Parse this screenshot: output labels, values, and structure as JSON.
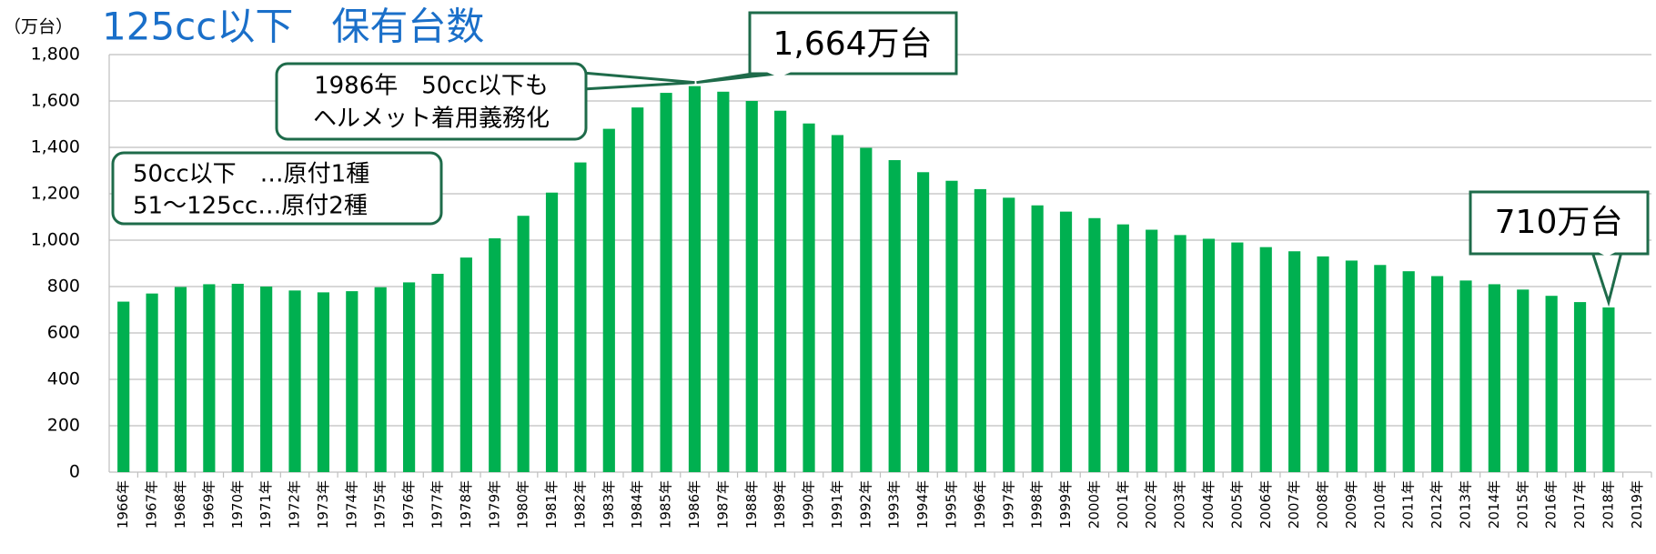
{
  "chart_data": {
    "type": "bar",
    "title": "125cc以下　保有台数",
    "y_unit_label": "（万台）",
    "categories": [
      "1966年",
      "1967年",
      "1968年",
      "1969年",
      "1970年",
      "1971年",
      "1972年",
      "1973年",
      "1974年",
      "1975年",
      "1976年",
      "1977年",
      "1978年",
      "1979年",
      "1980年",
      "1981年",
      "1982年",
      "1983年",
      "1984年",
      "1985年",
      "1986年",
      "1987年",
      "1988年",
      "1989年",
      "1990年",
      "1991年",
      "1992年",
      "1993年",
      "1994年",
      "1995年",
      "1996年",
      "1997年",
      "1998年",
      "1999年",
      "2000年",
      "2001年",
      "2002年",
      "2003年",
      "2004年",
      "2005年",
      "2006年",
      "2007年",
      "2008年",
      "2009年",
      "2010年",
      "2011年",
      "2012年",
      "2013年",
      "2014年",
      "2015年",
      "2016年",
      "2017年",
      "2018年",
      "2019年"
    ],
    "values": [
      735,
      770,
      798,
      810,
      812,
      800,
      783,
      775,
      780,
      797,
      818,
      855,
      925,
      1008,
      1105,
      1205,
      1335,
      1480,
      1572,
      1635,
      1664,
      1640,
      1600,
      1558,
      1503,
      1453,
      1398,
      1345,
      1293,
      1256,
      1220,
      1183,
      1150,
      1123,
      1095,
      1068,
      1045,
      1022,
      1006,
      990,
      970,
      952,
      930,
      912,
      893,
      866,
      845,
      826,
      810,
      787,
      760,
      733,
      710,
      null
    ],
    "color": "#00b050",
    "ylim": [
      0,
      1800
    ],
    "yticks": [
      0,
      200,
      400,
      600,
      800,
      {
        "value": 1000,
        "label": "1,000"
      },
      {
        "value": 1200,
        "label": "1,200"
      },
      {
        "value": 1400,
        "label": "1,400"
      },
      {
        "value": 1600,
        "label": "1,600"
      },
      {
        "value": 1800,
        "label": "1,800"
      }
    ],
    "grid": true,
    "annotations": {
      "peak": "1,664万台",
      "latest": "710万台",
      "note1986": [
        "1986年　50cc以下も",
        "ヘルメット着用義務化"
      ],
      "legend_note": [
        "50cc以下　…原付1種",
        "51～125cc…原付2種"
      ]
    }
  }
}
